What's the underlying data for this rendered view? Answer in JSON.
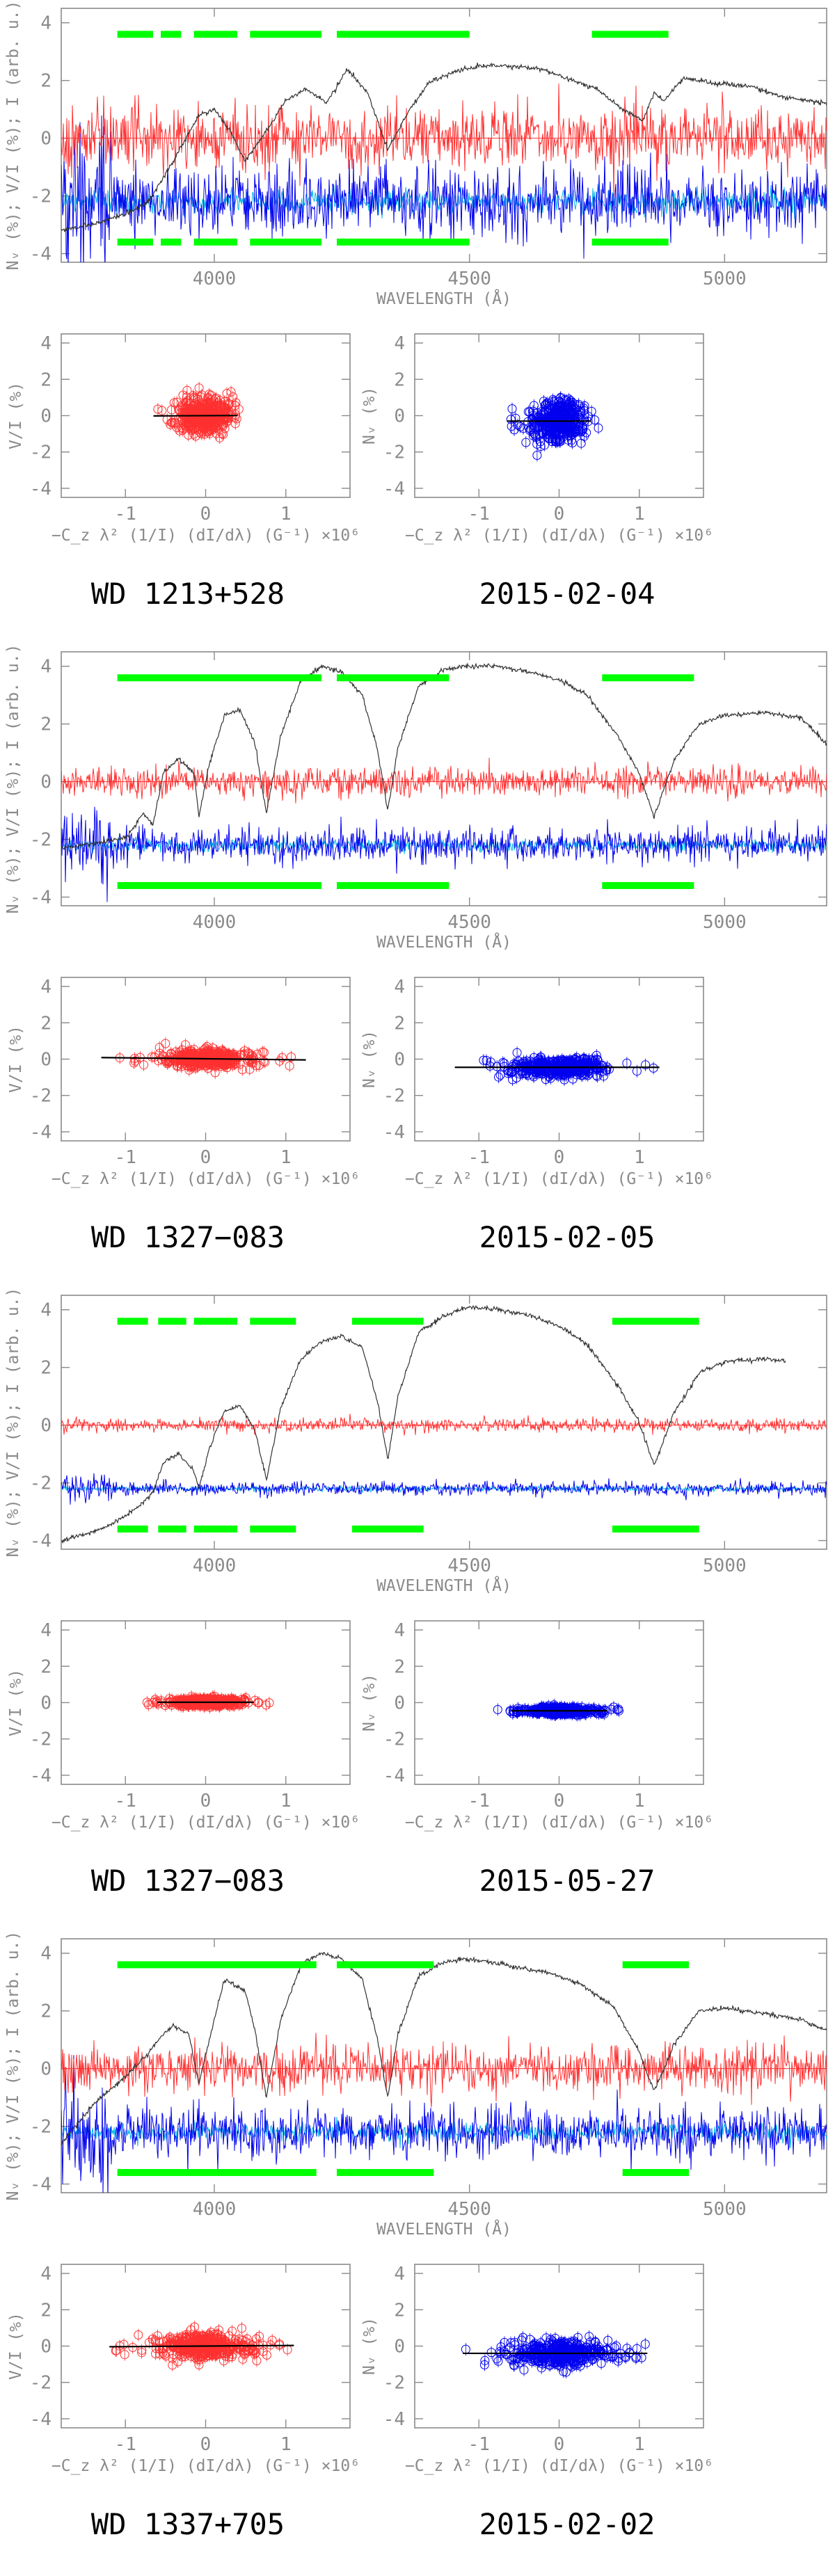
{
  "colors": {
    "axis": "#8a8a8a",
    "intensity": "#333333",
    "stokes_v": "#ff3030",
    "null": "#0000ee",
    "null_model": "#00b7e6",
    "mask": "#00ff00",
    "fit": "#000000"
  },
  "blocks": [
    {
      "star": "WD 1213+528",
      "date": "2015-02-04",
      "spectrum": {
        "xlabel": "WAVELENGTH (Å)",
        "ylabel": "Nᵥ (%); V/I (%); I (arb. u.)",
        "xlim": [
          3700,
          5200
        ],
        "ylim": [
          -4.3,
          4.5
        ],
        "xticks": [
          4000,
          4500,
          5000
        ],
        "yticks": [
          -4,
          -2,
          0,
          2,
          4
        ],
        "mask_ranges": [
          [
            3810,
            3880
          ],
          [
            3895,
            3935
          ],
          [
            3960,
            4045
          ],
          [
            4070,
            4210
          ],
          [
            4240,
            4500
          ],
          [
            4740,
            4890
          ]
        ],
        "v_noise": 0.55,
        "n_noise": 0.6,
        "intensity": {
          "x": [
            3700,
            3760,
            3830,
            3870,
            3900,
            3935,
            3970,
            4000,
            4030,
            4060,
            4100,
            4140,
            4180,
            4220,
            4260,
            4300,
            4340,
            4380,
            4420,
            4470,
            4520,
            4580,
            4640,
            4700,
            4750,
            4800,
            4840,
            4862,
            4880,
            4920,
            4980,
            5050,
            5120,
            5200
          ],
          "y": [
            -3.2,
            -3.0,
            -2.6,
            -2.2,
            -1.4,
            -0.3,
            0.8,
            1.0,
            0.3,
            -0.8,
            0.2,
            1.3,
            1.7,
            1.2,
            2.4,
            1.6,
            -0.4,
            0.9,
            1.9,
            2.3,
            2.5,
            2.5,
            2.4,
            2.0,
            1.7,
            1.0,
            0.6,
            1.6,
            1.3,
            2.1,
            1.9,
            1.8,
            1.4,
            1.2
          ]
        }
      },
      "left_panel": {
        "ylabel": "V/I (%)",
        "xlabel": "−C_z λ² (1/I) (dI/dλ) (G⁻¹) ×10⁶",
        "xlim": [
          -1.8,
          1.8
        ],
        "ylim": [
          -4.5,
          4.5
        ],
        "xticks": [
          -1,
          0,
          1
        ],
        "yticks": [
          -4,
          -2,
          0,
          2,
          4
        ],
        "cloud_xsd": 0.16,
        "cloud_ysd": 0.5,
        "cloud_xrange": [
          -0.6,
          0.5
        ],
        "fit_x": [
          -0.65,
          0.4
        ],
        "fit_slope": 0.02,
        "fit_intercept": 0.0
      },
      "right_panel": {
        "ylabel": "Nᵥ (%)",
        "xlabel": "−C_z λ² (1/I) (dI/dλ) (G⁻¹) ×10⁶",
        "xlim": [
          -1.8,
          1.8
        ],
        "ylim": [
          -4.5,
          4.5
        ],
        "xticks": [
          -1,
          0,
          1
        ],
        "yticks": [
          -4,
          -2,
          0,
          2,
          4
        ],
        "cloud_xsd": 0.16,
        "cloud_ysd": 0.55,
        "cloud_xrange": [
          -0.6,
          0.5
        ],
        "fit_x": [
          -0.65,
          0.4
        ],
        "fit_slope": 0.0,
        "fit_intercept": -0.3
      }
    },
    {
      "star": "WD 1327−083",
      "date": "2015-02-05",
      "spectrum": {
        "xlabel": "WAVELENGTH (Å)",
        "ylabel": "Nᵥ (%); V/I (%); I (arb. u.)",
        "xlim": [
          3700,
          5200
        ],
        "ylim": [
          -4.3,
          4.5
        ],
        "xticks": [
          4000,
          4500,
          5000
        ],
        "yticks": [
          -4,
          -2,
          0,
          2,
          4
        ],
        "mask_ranges": [
          [
            3810,
            4210
          ],
          [
            4240,
            4460
          ],
          [
            4760,
            4940
          ]
        ],
        "v_noise": 0.25,
        "n_noise": 0.3,
        "intensity": {
          "x": [
            3700,
            3780,
            3830,
            3860,
            3880,
            3900,
            3930,
            3960,
            3970,
            3990,
            4020,
            4050,
            4080,
            4102,
            4130,
            4170,
            4210,
            4250,
            4290,
            4320,
            4340,
            4360,
            4400,
            4450,
            4500,
            4560,
            4620,
            4680,
            4730,
            4790,
            4830,
            4862,
            4900,
            4950,
            5000,
            5080,
            5150,
            5200
          ],
          "y": [
            -2.3,
            -2.1,
            -1.9,
            -1.1,
            -1.5,
            0.3,
            0.8,
            0.3,
            -1.2,
            0.6,
            2.3,
            2.5,
            1.3,
            -1.1,
            1.6,
            3.5,
            4.0,
            3.8,
            3.0,
            1.1,
            -1.0,
            1.2,
            3.3,
            3.9,
            4.0,
            4.0,
            3.8,
            3.5,
            3.0,
            1.6,
            0.4,
            -1.2,
            0.7,
            2.0,
            2.3,
            2.4,
            2.2,
            1.3
          ]
        }
      },
      "left_panel": {
        "ylabel": "V/I (%)",
        "xlabel": "−C_z λ² (1/I) (dI/dλ) (G⁻¹) ×10⁶",
        "xlim": [
          -1.8,
          1.8
        ],
        "ylim": [
          -4.5,
          4.5
        ],
        "xticks": [
          -1,
          0,
          1
        ],
        "yticks": [
          -4,
          -2,
          0,
          2,
          4
        ],
        "cloud_xsd": 0.28,
        "cloud_ysd": 0.25,
        "cloud_xrange": [
          -1.2,
          1.2
        ],
        "fit_x": [
          -1.3,
          1.25
        ],
        "fit_slope": -0.05,
        "fit_intercept": 0.02
      },
      "right_panel": {
        "ylabel": "Nᵥ (%)",
        "xlabel": "−C_z λ² (1/I) (dI/dλ) (G⁻¹) ×10⁶",
        "xlim": [
          -1.8,
          1.8
        ],
        "ylim": [
          -4.5,
          4.5
        ],
        "xticks": [
          -1,
          0,
          1
        ],
        "yticks": [
          -4,
          -2,
          0,
          2,
          4
        ],
        "cloud_xsd": 0.28,
        "cloud_ysd": 0.25,
        "cloud_xrange": [
          -1.2,
          1.2
        ],
        "fit_x": [
          -1.3,
          1.25
        ],
        "fit_slope": 0.0,
        "fit_intercept": -0.45
      }
    },
    {
      "star": "WD 1327−083",
      "date": "2015-05-27",
      "spectrum": {
        "xlabel": "WAVELENGTH (Å)",
        "ylabel": "Nᵥ (%); V/I (%); I (arb. u.)",
        "xlim": [
          3700,
          5200
        ],
        "ylim": [
          -4.3,
          4.5
        ],
        "xticks": [
          4000,
          4500,
          5000
        ],
        "yticks": [
          -4,
          -2,
          0,
          2,
          4
        ],
        "mask_ranges": [
          [
            3810,
            3870
          ],
          [
            3890,
            3945
          ],
          [
            3960,
            4045
          ],
          [
            4070,
            4160
          ],
          [
            4270,
            4410
          ],
          [
            4780,
            4950
          ]
        ],
        "v_noise": 0.12,
        "n_noise": 0.12,
        "intensity": {
          "x": [
            3700,
            3780,
            3830,
            3860,
            3880,
            3900,
            3930,
            3960,
            3970,
            3990,
            4020,
            4050,
            4080,
            4102,
            4130,
            4170,
            4210,
            4250,
            4290,
            4320,
            4340,
            4360,
            4400,
            4450,
            4500,
            4560,
            4620,
            4680,
            4730,
            4790,
            4830,
            4862,
            4900,
            4950,
            5000,
            5080,
            5120
          ],
          "y": [
            -4.0,
            -3.6,
            -3.1,
            -2.7,
            -2.3,
            -1.3,
            -1.0,
            -1.6,
            -2.2,
            -0.8,
            0.5,
            0.7,
            -0.2,
            -1.9,
            0.6,
            2.3,
            2.9,
            3.1,
            2.7,
            0.8,
            -1.2,
            1.0,
            3.2,
            3.8,
            4.1,
            4.0,
            3.8,
            3.4,
            2.8,
            1.4,
            0.2,
            -1.4,
            0.4,
            1.8,
            2.2,
            2.3,
            2.2
          ]
        }
      },
      "left_panel": {
        "ylabel": "V/I (%)",
        "xlabel": "−C_z λ² (1/I) (dI/dλ) (G⁻¹) ×10⁶",
        "xlim": [
          -1.8,
          1.8
        ],
        "ylim": [
          -4.5,
          4.5
        ],
        "xticks": [
          -1,
          0,
          1
        ],
        "yticks": [
          -4,
          -2,
          0,
          2,
          4
        ],
        "cloud_xsd": 0.22,
        "cloud_ysd": 0.1,
        "cloud_xrange": [
          -0.8,
          0.8
        ],
        "fit_x": [
          -0.6,
          0.6
        ],
        "fit_slope": 0.0,
        "fit_intercept": 0.02
      },
      "right_panel": {
        "ylabel": "Nᵥ (%)",
        "xlabel": "−C_z λ² (1/I) (dI/dλ) (G⁻¹) ×10⁶",
        "xlim": [
          -1.8,
          1.8
        ],
        "ylim": [
          -4.5,
          4.5
        ],
        "xticks": [
          -1,
          0,
          1
        ],
        "yticks": [
          -4,
          -2,
          0,
          2,
          4
        ],
        "cloud_xsd": 0.22,
        "cloud_ysd": 0.1,
        "cloud_xrange": [
          -0.8,
          0.8
        ],
        "fit_x": [
          -0.6,
          0.6
        ],
        "fit_slope": 0.0,
        "fit_intercept": -0.45
      }
    },
    {
      "star": "WD 1337+705",
      "date": "2015-02-02",
      "spectrum": {
        "xlabel": "WAVELENGTH (Å)",
        "ylabel": "Nᵥ (%); V/I (%); I (arb. u.)",
        "xlim": [
          3700,
          5200
        ],
        "ylim": [
          -4.3,
          4.5
        ],
        "xticks": [
          4000,
          4500,
          5000
        ],
        "yticks": [
          -4,
          -2,
          0,
          2,
          4
        ],
        "mask_ranges": [
          [
            3810,
            4200
          ],
          [
            4240,
            4430
          ],
          [
            4800,
            4930
          ]
        ],
        "v_noise": 0.4,
        "n_noise": 0.45,
        "intensity": {
          "x": [
            3700,
            3760,
            3830,
            3870,
            3890,
            3920,
            3950,
            3970,
            3990,
            4020,
            4060,
            4080,
            4102,
            4130,
            4170,
            4210,
            4250,
            4290,
            4320,
            4340,
            4360,
            4400,
            4450,
            4490,
            4540,
            4600,
            4660,
            4720,
            4780,
            4830,
            4862,
            4900,
            4950,
            5000,
            5080,
            5150,
            5200
          ],
          "y": [
            -2.6,
            -1.3,
            -0.2,
            0.5,
            1.0,
            1.5,
            1.2,
            -0.5,
            1.0,
            3.1,
            2.7,
            1.3,
            -1.0,
            1.7,
            3.6,
            4.0,
            3.8,
            3.1,
            1.0,
            -1.0,
            1.2,
            3.2,
            3.7,
            3.8,
            3.7,
            3.5,
            3.3,
            2.9,
            2.2,
            0.7,
            -0.8,
            0.8,
            2.0,
            2.1,
            1.9,
            1.7,
            1.3
          ]
        }
      },
      "left_panel": {
        "ylabel": "V/I (%)",
        "xlabel": "−C_z λ² (1/I) (dI/dλ) (G⁻¹) ×10⁶",
        "xlim": [
          -1.8,
          1.8
        ],
        "ylim": [
          -4.5,
          4.5
        ],
        "xticks": [
          -1,
          0,
          1
        ],
        "yticks": [
          -4,
          -2,
          0,
          2,
          4
        ],
        "cloud_xsd": 0.3,
        "cloud_ysd": 0.35,
        "cloud_xrange": [
          -1.2,
          1.1
        ],
        "fit_x": [
          -1.2,
          1.1
        ],
        "fit_slope": 0.03,
        "fit_intercept": 0.0
      },
      "right_panel": {
        "ylabel": "Nᵥ (%)",
        "xlabel": "−C_z λ² (1/I) (dI/dλ) (G⁻¹) ×10⁶",
        "xlim": [
          -1.8,
          1.8
        ],
        "ylim": [
          -4.5,
          4.5
        ],
        "xticks": [
          -1,
          0,
          1
        ],
        "yticks": [
          -4,
          -2,
          0,
          2,
          4
        ],
        "cloud_xsd": 0.3,
        "cloud_ysd": 0.35,
        "cloud_xrange": [
          -1.2,
          1.1
        ],
        "fit_x": [
          -1.2,
          1.1
        ],
        "fit_slope": 0.0,
        "fit_intercept": -0.4
      }
    }
  ],
  "chart_data": [
    {
      "type": "line",
      "title": "WD 1213+528 2015-02-04",
      "xlabel": "WAVELENGTH (Å)",
      "ylabel": "Nᵥ (%); V/I (%); I (arb. u.)",
      "xlim": [
        3700,
        5200
      ],
      "ylim": [
        -4.3,
        4.5
      ],
      "series": [
        {
          "name": "I (arb. u.)",
          "x": [
            3700,
            3900,
            4000,
            4060,
            4180,
            4260,
            4340,
            4520,
            4700,
            4862,
            4920,
            5200
          ],
          "values": [
            -3.2,
            -1.4,
            1.0,
            -0.8,
            1.7,
            2.4,
            -0.4,
            2.5,
            2.0,
            1.6,
            2.1,
            1.2
          ]
        },
        {
          "name": "V/I (%)",
          "x": [
            3700,
            5200
          ],
          "values": [
            0,
            0
          ]
        },
        {
          "name": "Nᵥ (%)",
          "x": [
            3700,
            5200
          ],
          "values": [
            -2.2,
            -2.2
          ]
        }
      ]
    },
    {
      "type": "line",
      "title": "WD 1327−083 2015-02-05",
      "xlabel": "WAVELENGTH (Å)",
      "ylabel": "Nᵥ (%); V/I (%); I (arb. u.)",
      "xlim": [
        3700,
        5200
      ],
      "ylim": [
        -4.3,
        4.5
      ],
      "series": [
        {
          "name": "I (arb. u.)",
          "x": [
            3700,
            3970,
            4050,
            4102,
            4210,
            4340,
            4500,
            4862,
            5080,
            5200
          ],
          "values": [
            -2.3,
            -1.2,
            2.5,
            -1.1,
            4.0,
            -1.0,
            4.0,
            -1.2,
            2.4,
            1.3
          ]
        },
        {
          "name": "V/I (%)",
          "x": [
            3700,
            5200
          ],
          "values": [
            0,
            0
          ]
        },
        {
          "name": "Nᵥ (%)",
          "x": [
            3700,
            5200
          ],
          "values": [
            -2.2,
            -2.2
          ]
        }
      ]
    },
    {
      "type": "line",
      "title": "WD 1327−083 2015-05-27",
      "xlabel": "WAVELENGTH (Å)",
      "ylabel": "Nᵥ (%); V/I (%); I (arb. u.)",
      "xlim": [
        3700,
        5200
      ],
      "ylim": [
        -4.3,
        4.5
      ],
      "series": [
        {
          "name": "I (arb. u.)",
          "x": [
            3700,
            3970,
            4050,
            4102,
            4250,
            4340,
            4500,
            4862,
            5080,
            5120
          ],
          "values": [
            -4.0,
            -2.2,
            0.7,
            -1.9,
            3.1,
            -1.2,
            4.1,
            -1.4,
            2.3,
            2.2
          ]
        },
        {
          "name": "V/I (%)",
          "x": [
            3700,
            5200
          ],
          "values": [
            0,
            0
          ]
        },
        {
          "name": "Nᵥ (%)",
          "x": [
            3700,
            5200
          ],
          "values": [
            -2.2,
            -2.2
          ]
        }
      ]
    },
    {
      "type": "line",
      "title": "WD 1337+705 2015-02-02",
      "xlabel": "WAVELENGTH (Å)",
      "ylabel": "Nᵥ (%); V/I (%); I (arb. u.)",
      "xlim": [
        3700,
        5200
      ],
      "ylim": [
        -4.3,
        4.5
      ],
      "series": [
        {
          "name": "I (arb. u.)",
          "x": [
            3700,
            3920,
            3970,
            4020,
            4102,
            4210,
            4340,
            4490,
            4862,
            4950,
            5200
          ],
          "values": [
            -2.6,
            1.5,
            -0.5,
            3.1,
            -1.0,
            4.0,
            -1.0,
            3.8,
            -0.8,
            2.0,
            1.3
          ]
        },
        {
          "name": "V/I (%)",
          "x": [
            3700,
            5200
          ],
          "values": [
            0,
            0
          ]
        },
        {
          "name": "Nᵥ (%)",
          "x": [
            3700,
            5200
          ],
          "values": [
            -2.2,
            -2.2
          ]
        }
      ]
    }
  ]
}
